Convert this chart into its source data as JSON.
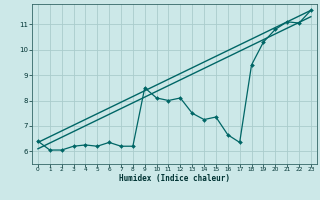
{
  "xlabel": "Humidex (Indice chaleur)",
  "bg_color": "#cce8e8",
  "grid_color": "#aacccc",
  "line_color": "#006666",
  "xlim": [
    -0.5,
    23.5
  ],
  "ylim": [
    5.5,
    11.8
  ],
  "xticks": [
    0,
    1,
    2,
    3,
    4,
    5,
    6,
    7,
    8,
    9,
    10,
    11,
    12,
    13,
    14,
    15,
    16,
    17,
    18,
    19,
    20,
    21,
    22,
    23
  ],
  "yticks": [
    6,
    7,
    8,
    9,
    10,
    11
  ],
  "zigzag_x": [
    0,
    1,
    2,
    3,
    4,
    5,
    6,
    7,
    8,
    9,
    10,
    11,
    12,
    13,
    14,
    15,
    16,
    17,
    18,
    19,
    20,
    21,
    22,
    23
  ],
  "zigzag_y": [
    6.4,
    6.05,
    6.05,
    6.2,
    6.25,
    6.2,
    6.35,
    6.2,
    6.2,
    8.5,
    8.1,
    8.0,
    8.1,
    7.5,
    7.25,
    7.35,
    6.65,
    6.35,
    9.4,
    10.3,
    10.8,
    11.1,
    11.05,
    11.55
  ],
  "trend_x": [
    0,
    23
  ],
  "trend_y": [
    6.35,
    11.55
  ],
  "trend2_x": [
    0,
    23
  ],
  "trend2_y": [
    6.1,
    11.3
  ]
}
